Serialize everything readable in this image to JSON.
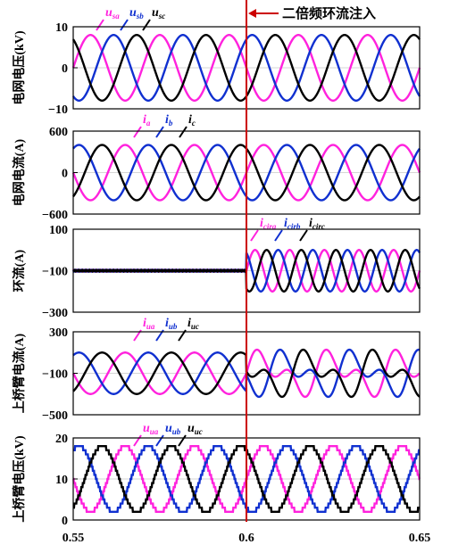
{
  "figure": {
    "annotation": "二倍频环流注入",
    "x_ticks": [
      "0.55",
      "0.6",
      "0.65"
    ],
    "colors": {
      "a": "#ff22dd",
      "b": "#1030d0",
      "c": "#000000",
      "marker": "#cc0000",
      "grid": "#c8c8c8"
    }
  },
  "chart_data": [
    {
      "type": "line",
      "ylabel": "电网电压(kV)",
      "yticks": [
        "10",
        "0",
        "−10"
      ],
      "ylim": [
        -10,
        10
      ],
      "xlim": [
        0.55,
        0.65
      ],
      "series": [
        {
          "name": "u",
          "sub": "sa",
          "amplitude": 8,
          "phase_deg": 180,
          "key": "a"
        },
        {
          "name": "u",
          "sub": "sb",
          "amplitude": 8,
          "phase_deg": 60,
          "key": "b"
        },
        {
          "name": "u",
          "sub": "sc",
          "amplitude": 8,
          "phase_deg": -60,
          "key": "c"
        }
      ]
    },
    {
      "type": "line",
      "ylabel": "电网电流(A)",
      "yticks": [
        "600",
        "0",
        "−600"
      ],
      "ylim": [
        -600,
        600
      ],
      "xlim": [
        0.55,
        0.65
      ],
      "series": [
        {
          "name": "i",
          "sub": "a",
          "amplitude": 400,
          "phase_deg": 0,
          "key": "a"
        },
        {
          "name": "i",
          "sub": "b",
          "amplitude": 400,
          "phase_deg": -120,
          "key": "b"
        },
        {
          "name": "i",
          "sub": "c",
          "amplitude": 400,
          "phase_deg": 120,
          "key": "c"
        }
      ]
    },
    {
      "type": "line",
      "ylabel": "环流(A)",
      "yticks": [
        "100",
        "−100",
        "−300"
      ],
      "ylim": [
        -300,
        100
      ],
      "xlim": [
        0.55,
        0.65
      ],
      "series": [
        {
          "name": "i",
          "sub": "cira",
          "offset": -100,
          "amplitude_after": 100,
          "freq_hz": 100,
          "phase_deg": 0,
          "key": "a"
        },
        {
          "name": "i",
          "sub": "cirb",
          "offset": -100,
          "amplitude_after": 100,
          "freq_hz": 100,
          "phase_deg": 120,
          "key": "b"
        },
        {
          "name": "i",
          "sub": "circ",
          "offset": -100,
          "amplitude_after": 100,
          "freq_hz": 100,
          "phase_deg": -120,
          "key": "c"
        }
      ]
    },
    {
      "type": "line",
      "ylabel": "上桥臂电流(A)",
      "yticks": [
        "300",
        "−100",
        "−500"
      ],
      "ylim": [
        -500,
        300
      ],
      "xlim": [
        0.55,
        0.65
      ],
      "series": [
        {
          "name": "i",
          "sub": "ua",
          "offset": -100,
          "amplitude": 200,
          "phase_deg": 0,
          "key": "a"
        },
        {
          "name": "i",
          "sub": "ub",
          "offset": -100,
          "amplitude": 200,
          "phase_deg": -120,
          "key": "b"
        },
        {
          "name": "i",
          "sub": "uc",
          "offset": -100,
          "amplitude": 200,
          "phase_deg": 120,
          "key": "c"
        }
      ]
    },
    {
      "type": "line",
      "ylabel": "上桥臂电压(kV)",
      "yticks": [
        "20",
        "10",
        "0"
      ],
      "ylim": [
        0,
        20
      ],
      "xlim": [
        0.55,
        0.65
      ],
      "series": [
        {
          "name": "u",
          "sub": "ua",
          "offset": 10,
          "amplitude": 8,
          "phase_deg": 0,
          "key": "a"
        },
        {
          "name": "u",
          "sub": "ub",
          "offset": 10,
          "amplitude": 8,
          "phase_deg": -120,
          "key": "b"
        },
        {
          "name": "u",
          "sub": "uc",
          "offset": 10,
          "amplitude": 8,
          "phase_deg": 120,
          "key": "c"
        }
      ]
    }
  ]
}
